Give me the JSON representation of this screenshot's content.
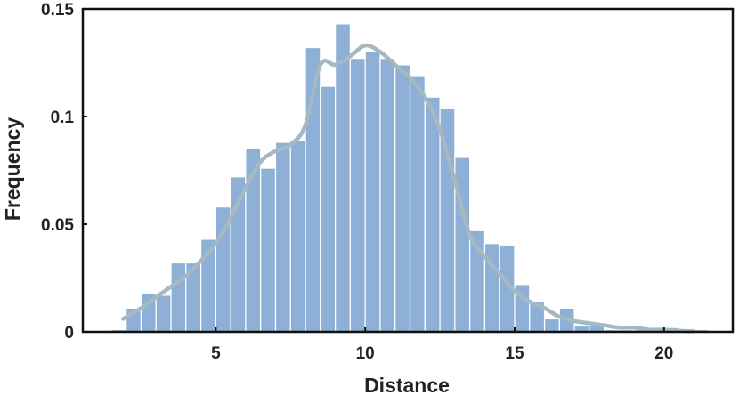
{
  "chart_data": {
    "type": "bar",
    "title": "",
    "xlabel": "Distance",
    "ylabel": "Frequency",
    "xlim": [
      0.55,
      22.3
    ],
    "ylim": [
      0,
      0.15
    ],
    "xticks": [
      5,
      10,
      15,
      20
    ],
    "xtick_labels": [
      "5",
      "10",
      "15",
      "20"
    ],
    "yticks": [
      0,
      0.05,
      0.1,
      0.15
    ],
    "ytick_labels": [
      "0",
      "0.05",
      "0.1",
      "0.15"
    ],
    "grid": false,
    "legend": "none",
    "bin_width": 0.5,
    "bin_starts": [
      1.5,
      2.0,
      2.5,
      3.0,
      3.5,
      4.0,
      4.5,
      5.0,
      5.5,
      6.0,
      6.5,
      7.0,
      7.5,
      8.0,
      8.5,
      9.0,
      9.5,
      10.0,
      10.5,
      11.0,
      11.5,
      12.0,
      12.5,
      13.0,
      13.5,
      14.0,
      14.5,
      15.0,
      15.5,
      16.0,
      16.5,
      17.0,
      17.5,
      18.0,
      18.5,
      19.0,
      19.5,
      20.0,
      20.5,
      21.0
    ],
    "values": [
      0.001,
      0.011,
      0.018,
      0.017,
      0.032,
      0.032,
      0.043,
      0.058,
      0.072,
      0.085,
      0.076,
      0.088,
      0.089,
      0.132,
      0.114,
      0.143,
      0.127,
      0.13,
      0.127,
      0.124,
      0.119,
      0.109,
      0.104,
      0.081,
      0.047,
      0.041,
      0.04,
      0.022,
      0.014,
      0.006,
      0.011,
      0.003,
      0.003,
      0.001,
      0.001,
      0.001,
      0.001,
      0.002,
      0.001,
      0.001
    ],
    "kde": {
      "x": [
        1.9,
        2.5,
        3,
        3.5,
        4,
        4.5,
        5,
        5.5,
        6,
        6.5,
        7,
        7.5,
        8,
        8.5,
        9,
        9.5,
        10,
        10.5,
        11,
        11.5,
        12,
        12.5,
        13,
        13.5,
        14,
        14.5,
        15,
        15.5,
        16,
        16.5,
        17,
        17.5,
        18,
        18.5,
        19,
        19.5,
        20,
        20.5,
        21
      ],
      "y": [
        0.006,
        0.011,
        0.016,
        0.021,
        0.026,
        0.033,
        0.041,
        0.053,
        0.067,
        0.079,
        0.084,
        0.087,
        0.096,
        0.124,
        0.124,
        0.128,
        0.133,
        0.13,
        0.124,
        0.118,
        0.109,
        0.094,
        0.07,
        0.045,
        0.035,
        0.027,
        0.019,
        0.014,
        0.011,
        0.007,
        0.005,
        0.004,
        0.003,
        0.002,
        0.002,
        0.001,
        0.001,
        0.0005,
        0.0003
      ]
    },
    "colors": {
      "bar_fill": "#8eb0d6",
      "bar_edge": "#ffffff",
      "kde_line": "#a6b8c2",
      "axis": "#111111",
      "text": "#222222"
    }
  }
}
